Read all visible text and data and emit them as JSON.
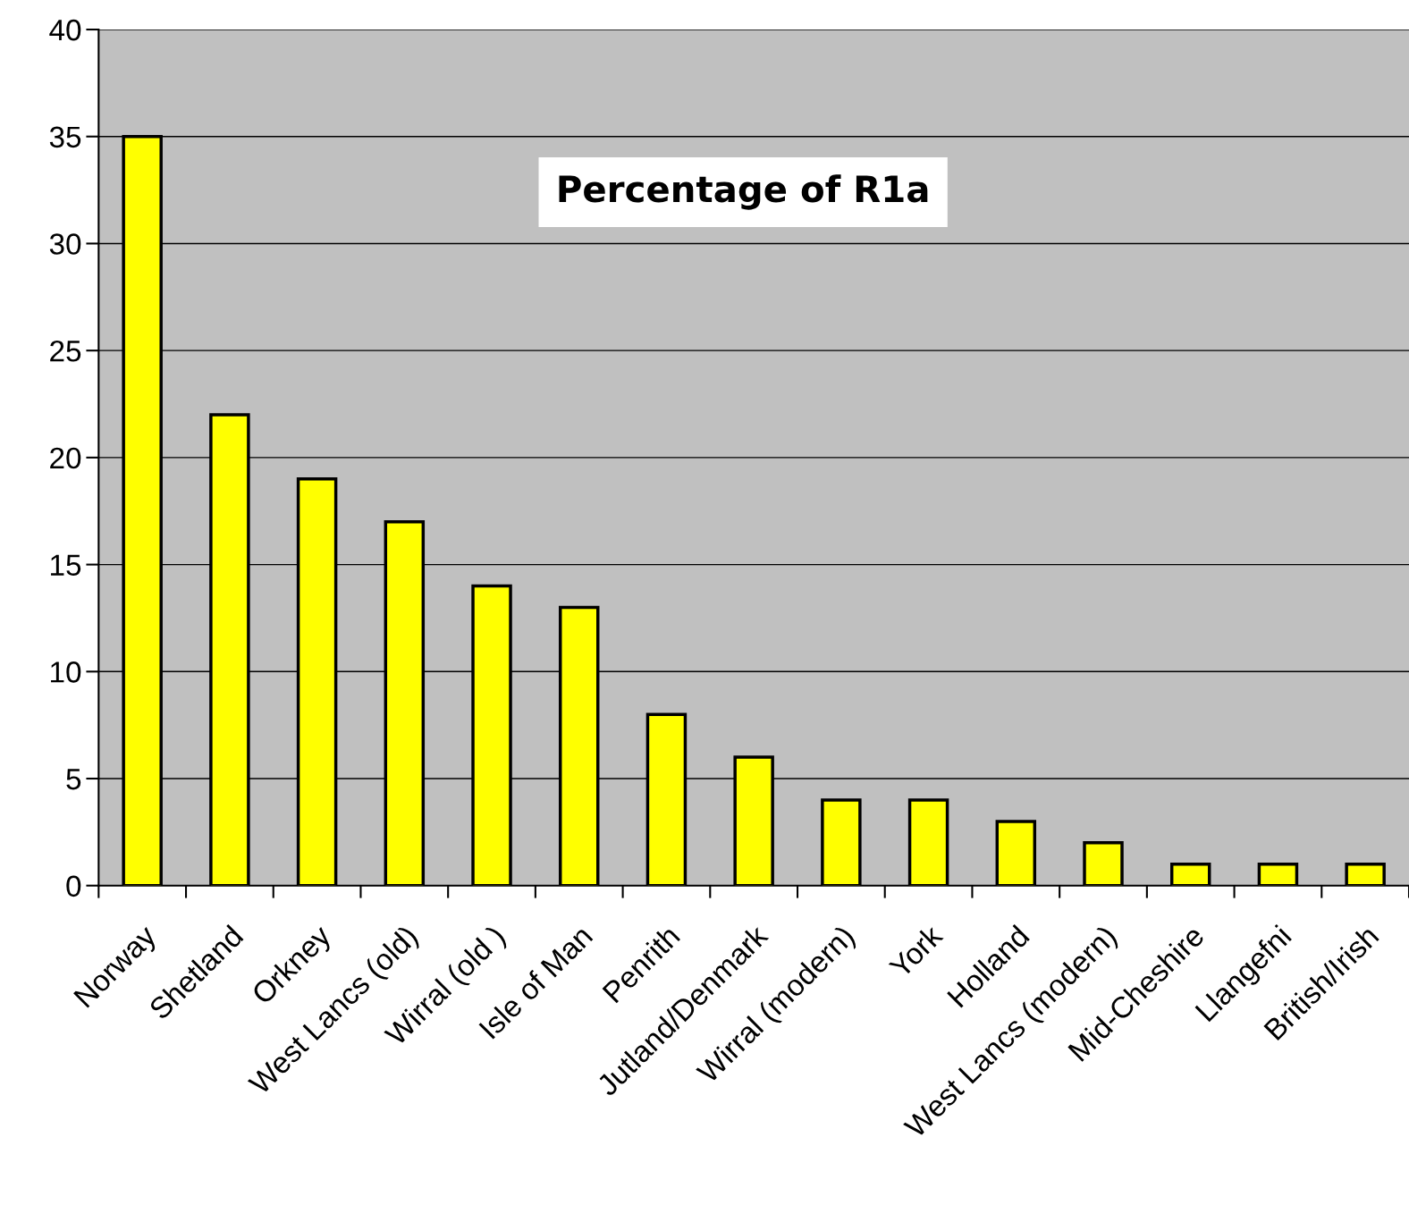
{
  "chart_data": {
    "type": "bar",
    "title": "Percentage of R1a",
    "categories": [
      "Norway",
      "Shetland",
      "Orkney",
      "West Lancs (old)",
      "Wirral (old )",
      "Isle of Man",
      "Penrith",
      "Jutland/Denmark",
      "Wirral (modern)",
      "York",
      "Holland",
      "West Lancs (modern)",
      "Mid-Cheshire",
      "Llangefni",
      "British/Irish"
    ],
    "values": [
      35,
      22,
      19,
      17,
      14,
      13,
      8,
      6,
      4,
      4,
      3,
      2,
      1,
      1,
      1
    ],
    "color": "#ffff00",
    "ylim": [
      0,
      40
    ],
    "yticks": [
      0,
      5,
      10,
      15,
      20,
      25,
      30,
      35,
      40
    ],
    "grid": "y",
    "legend": false
  }
}
